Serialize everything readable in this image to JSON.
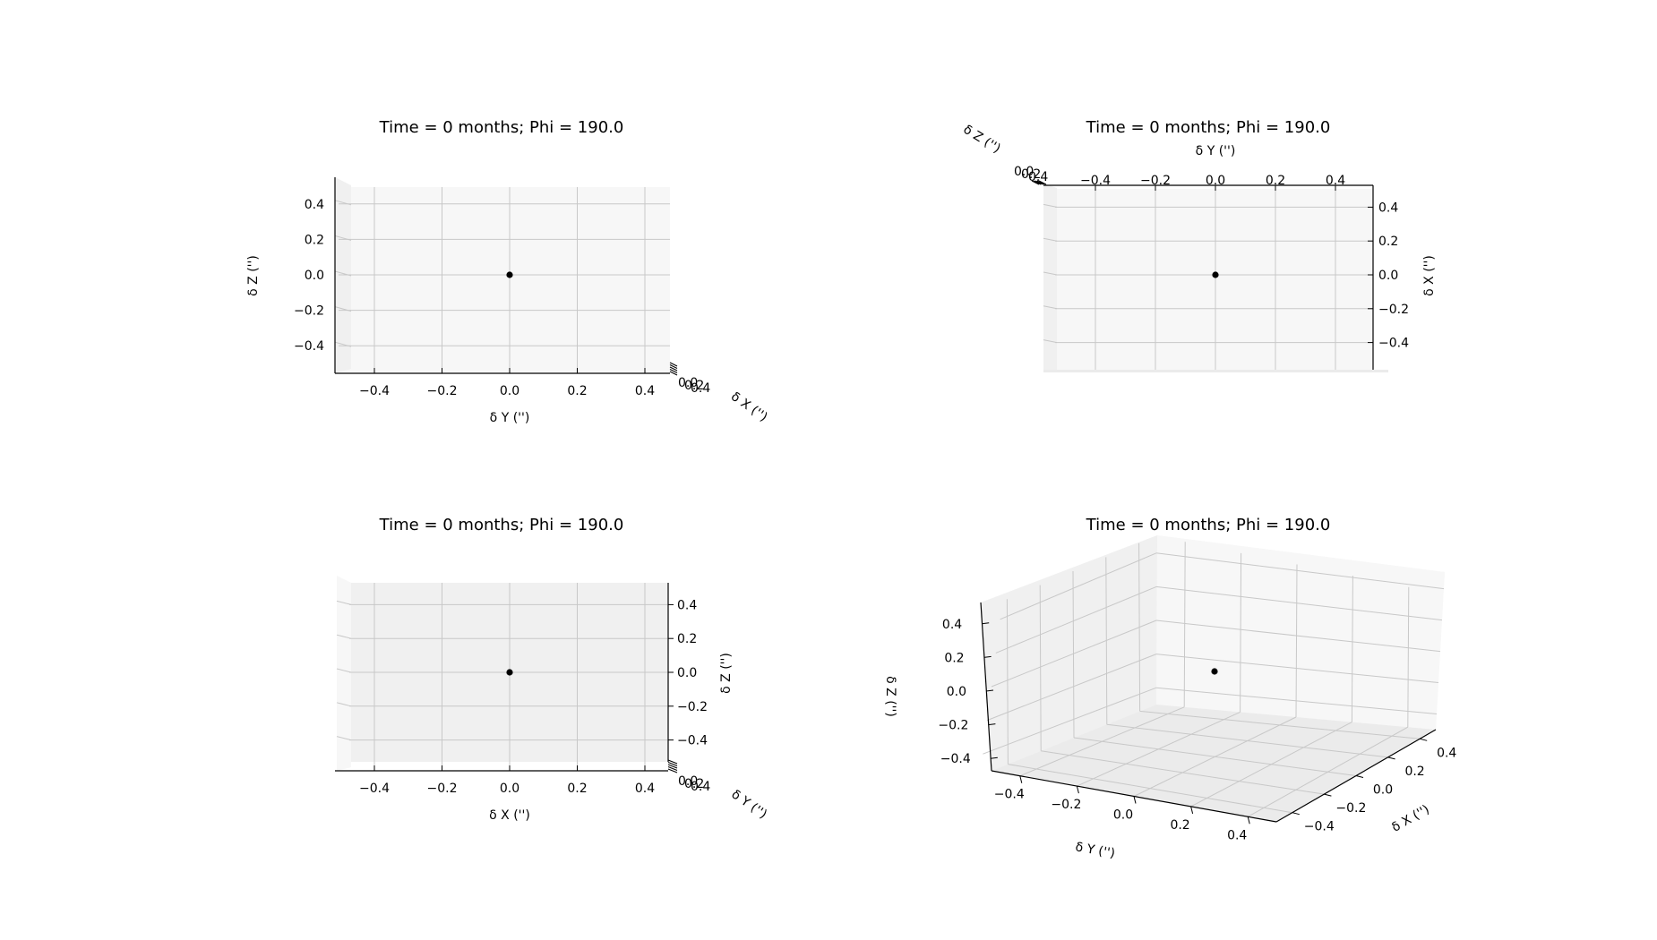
{
  "chart_data": [
    {
      "type": "scatter",
      "title": "Time = 0 months; Phi = 190.0",
      "view": "front",
      "xlabel": "δ X ('')",
      "ylabel": "δ Y ('')",
      "zlabel": "δ Z ('')",
      "ticks": [
        "−0.4",
        "−0.2",
        "0.0",
        "0.2",
        "0.4"
      ],
      "xlim": [
        -0.5,
        0.5
      ],
      "ylim": [
        -0.5,
        0.5
      ],
      "zlim": [
        -0.5,
        0.5
      ],
      "points": [
        {
          "x": 0,
          "y": 0,
          "z": 0
        }
      ]
    },
    {
      "type": "scatter",
      "title": "Time = 0 months; Phi = 190.0",
      "view": "top",
      "xlabel": "δ X ('')",
      "ylabel": "δ Y ('')",
      "zlabel": "δ Z ('')",
      "ticks": [
        "−0.4",
        "−0.2",
        "0.0",
        "0.2",
        "0.4"
      ],
      "xlim": [
        -0.5,
        0.5
      ],
      "ylim": [
        -0.5,
        0.5
      ],
      "zlim": [
        -0.5,
        0.5
      ],
      "points": [
        {
          "x": 0,
          "y": 0,
          "z": 0
        }
      ]
    },
    {
      "type": "scatter",
      "title": "Time = 0 months; Phi = 190.0",
      "view": "side",
      "xlabel": "δ X ('')",
      "ylabel": "δ Y ('')",
      "zlabel": "δ Z ('')",
      "ticks": [
        "−0.4",
        "−0.2",
        "0.0",
        "0.2",
        "0.4"
      ],
      "xlim": [
        -0.5,
        0.5
      ],
      "ylim": [
        -0.5,
        0.5
      ],
      "zlim": [
        -0.5,
        0.5
      ],
      "points": [
        {
          "x": 0,
          "y": 0,
          "z": 0
        }
      ]
    },
    {
      "type": "scatter",
      "title": "Time = 0 months; Phi = 190.0",
      "view": "perspective",
      "xlabel": "δ X ('')",
      "ylabel": "δ Y ('')",
      "zlabel": "δ Z ('')",
      "ticks": [
        "−0.4",
        "−0.2",
        "0.0",
        "0.2",
        "0.4"
      ],
      "xlim": [
        -0.5,
        0.5
      ],
      "ylim": [
        -0.5,
        0.5
      ],
      "zlim": [
        -0.5,
        0.5
      ],
      "points": [
        {
          "x": 0,
          "y": 0,
          "z": 0
        }
      ]
    }
  ]
}
